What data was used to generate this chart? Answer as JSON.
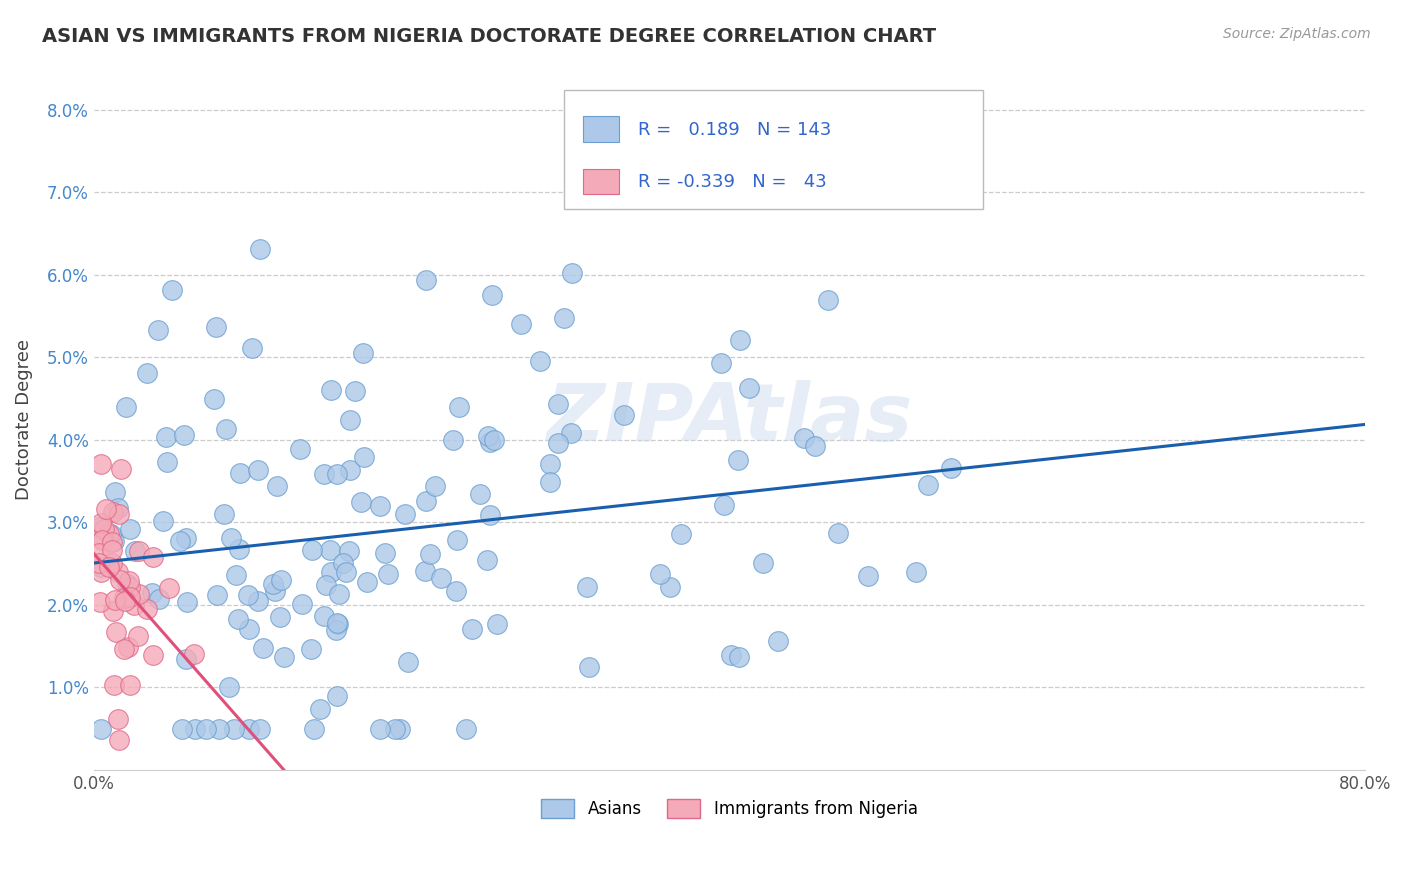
{
  "title": "ASIAN VS IMMIGRANTS FROM NIGERIA DOCTORATE DEGREE CORRELATION CHART",
  "source": "Source: ZipAtlas.com",
  "ylabel": "Doctorate Degree",
  "xlim": [
    0.0,
    0.8
  ],
  "ylim": [
    0.0,
    0.085
  ],
  "xticks": [
    0.0,
    0.1,
    0.2,
    0.3,
    0.4,
    0.5,
    0.6,
    0.7,
    0.8
  ],
  "xticklabels": [
    "0.0%",
    "",
    "",
    "",
    "",
    "",
    "",
    "",
    "80.0%"
  ],
  "yticks": [
    0.0,
    0.01,
    0.02,
    0.03,
    0.04,
    0.05,
    0.06,
    0.07,
    0.08
  ],
  "yticklabels": [
    "",
    "1.0%",
    "2.0%",
    "3.0%",
    "4.0%",
    "5.0%",
    "6.0%",
    "7.0%",
    "8.0%"
  ],
  "asian_color": "#adc8e8",
  "nigeria_color": "#f4aab8",
  "asian_edge": "#6a9fd0",
  "nigeria_edge": "#e06888",
  "trend_blue": "#1a5fad",
  "trend_pink": "#e0507a",
  "trend_pink_dash": "#e8a0b8",
  "R_asian": 0.189,
  "N_asian": 143,
  "R_nigeria": -0.339,
  "N_nigeria": 43,
  "legend_label_asian": "Asians",
  "legend_label_nigeria": "Immigrants from Nigeria",
  "watermark": "ZIPAtlas"
}
